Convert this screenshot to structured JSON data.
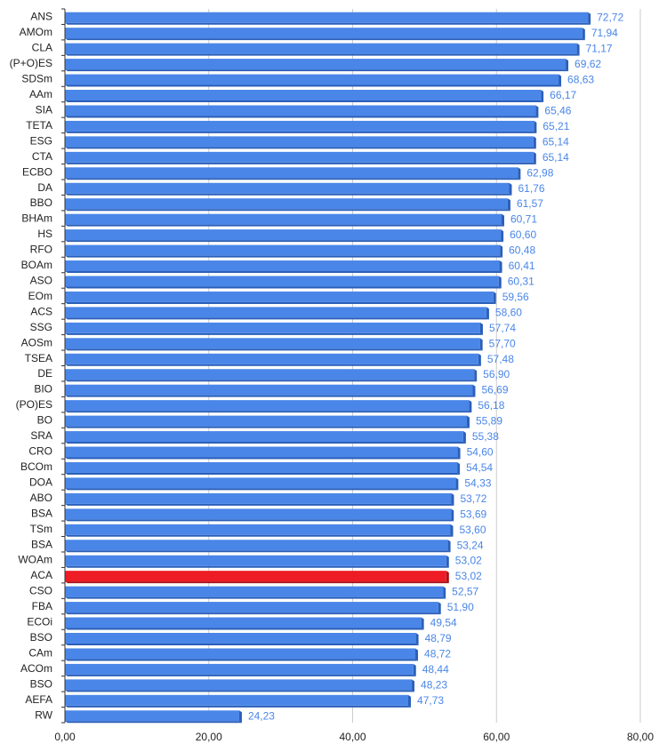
{
  "chart_data": {
    "type": "bar",
    "orientation": "horizontal",
    "categories": [
      "ANS",
      "AMOm",
      "CLA",
      "(P+O)ES",
      "SDSm",
      "AAm",
      "SIA",
      "TETA",
      "ESG",
      "CTA",
      "ECBO",
      "DA",
      "BBO",
      "BHAm",
      "HS",
      "RFO",
      "BOAm",
      "ASO",
      "EOm",
      "ACS",
      "SSG",
      "AOSm",
      "TSEA",
      "DE",
      "BIO",
      "(PO)ES",
      "BO",
      "SRA",
      "CRO",
      "BCOm",
      "DOA",
      "ABO",
      "BSA",
      "TSm",
      "BSA",
      "WOAm",
      "ACA",
      "CSO",
      "FBA",
      "ECOi",
      "BSO",
      "CAm",
      "ACOm",
      "BSO",
      "AEFA",
      "RW"
    ],
    "values": [
      72.72,
      71.94,
      71.17,
      69.62,
      68.63,
      66.17,
      65.46,
      65.21,
      65.14,
      65.14,
      62.98,
      61.76,
      61.57,
      60.71,
      60.6,
      60.48,
      60.41,
      60.31,
      59.56,
      58.6,
      57.74,
      57.7,
      57.48,
      56.9,
      56.69,
      56.18,
      55.89,
      55.38,
      54.6,
      54.54,
      54.33,
      53.72,
      53.69,
      53.6,
      53.24,
      53.02,
      53.02,
      52.57,
      51.9,
      49.54,
      48.79,
      48.72,
      48.44,
      48.23,
      47.73,
      24.23
    ],
    "value_labels": [
      "72,72",
      "71,94",
      "71,17",
      "69,62",
      "68,63",
      "66,17",
      "65,46",
      "65,21",
      "65,14",
      "65,14",
      "62,98",
      "61,76",
      "61,57",
      "60,71",
      "60,60",
      "60,48",
      "60,41",
      "60,31",
      "59,56",
      "58,60",
      "57,74",
      "57,70",
      "57,48",
      "56,90",
      "56,69",
      "56,18",
      "55,89",
      "55,38",
      "54,60",
      "54,54",
      "54,33",
      "53,72",
      "53,69",
      "53,60",
      "53,24",
      "53,02",
      "53,02",
      "52,57",
      "51,90",
      "49,54",
      "48,79",
      "48,72",
      "48,44",
      "48,23",
      "47,73",
      "24,23"
    ],
    "highlight_index": 36,
    "colors": {
      "bar": "#4a86e8",
      "bar_shade": "#2b5fb8",
      "highlight": "#ee1c25",
      "highlight_shade": "#a5121a",
      "label": "#4a86e8"
    },
    "xlim": [
      0,
      80
    ],
    "x_ticks": [
      0,
      20,
      40,
      60,
      80
    ],
    "x_tick_labels": [
      "0,00",
      "20,00",
      "40,00",
      "60,00",
      "80,00"
    ],
    "grid": true,
    "title": "",
    "xlabel": "",
    "ylabel": ""
  }
}
